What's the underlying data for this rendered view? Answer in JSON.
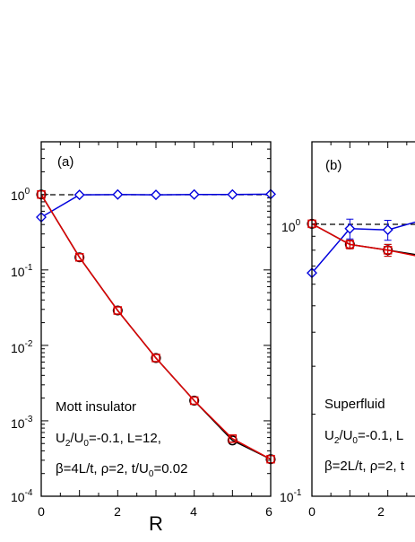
{
  "chart_data": [
    {
      "type": "line",
      "panel_label": "(a)",
      "xlabel": "R",
      "ylabel": "",
      "yscale": "log",
      "xlim": [
        0,
        6
      ],
      "ylim": [
        0.0001,
        5
      ],
      "x_ticks": [
        "0",
        "2",
        "4",
        "6"
      ],
      "y_ticks": [
        {
          "base": "10",
          "exp": "0"
        },
        {
          "base": "10",
          "exp": "-1"
        },
        {
          "base": "10",
          "exp": "-2"
        },
        {
          "base": "10",
          "exp": "-3"
        },
        {
          "base": "10",
          "exp": "-4"
        }
      ],
      "annotation": {
        "phase": "Mott insulator",
        "line2": {
          "a": "U",
          "a_sub": "2",
          "b": "/U",
          "b_sub": "0",
          "c": "=-0.1, L=12,"
        },
        "line3": {
          "a": "β=4L/t, ρ=2, t/U",
          "a_sub": "0",
          "b": "=0.02"
        }
      },
      "reference_line": 1,
      "series": [
        {
          "color": "#0000dd",
          "marker": "diamond",
          "x": [
            0,
            1,
            2,
            3,
            4,
            5,
            6
          ],
          "y": [
            0.5,
            0.99,
            1.0,
            0.99,
            1.0,
            1.0,
            1.01
          ]
        },
        {
          "color": "#000000",
          "marker": "circle",
          "x": [
            0,
            1,
            2,
            3,
            4,
            5,
            6
          ],
          "y": [
            1.0,
            0.147,
            0.029,
            0.0068,
            0.00185,
            0.00055,
            0.00031
          ]
        },
        {
          "color": "#dd0000",
          "marker": "square",
          "x": [
            0,
            1,
            2,
            3,
            4,
            5,
            6
          ],
          "y": [
            1.0,
            0.147,
            0.029,
            0.0068,
            0.00185,
            0.00058,
            0.00031
          ]
        }
      ]
    },
    {
      "type": "line",
      "panel_label": "(b)",
      "xlabel": "R",
      "ylabel": "",
      "yscale": "log",
      "xlim": [
        0,
        6
      ],
      "ylim": [
        0.1,
        2
      ],
      "x_ticks": [
        "0",
        "2"
      ],
      "y_ticks": [
        {
          "base": "10",
          "exp": "0"
        },
        {
          "base": "10",
          "exp": "-1"
        }
      ],
      "annotation": {
        "phase": "Superfluid",
        "line2": {
          "a": "U",
          "a_sub": "2",
          "b": "/U",
          "b_sub": "0",
          "c": "=-0.1, L"
        },
        "line3": {
          "a": "β=2L/t, ρ=2, t",
          "a_sub": "",
          "b": ""
        }
      },
      "reference_line": 1,
      "series": [
        {
          "color": "#0000dd",
          "marker": "diamond",
          "x": [
            0,
            1,
            2,
            3
          ],
          "y": [
            0.66,
            0.96,
            0.95,
            1.04
          ],
          "err": [
            0,
            0.08,
            0.08,
            0.09
          ]
        },
        {
          "color": "#000000",
          "marker": "circle",
          "x": [
            0,
            1,
            2,
            3
          ],
          "y": [
            1.0,
            0.84,
            0.8,
            0.76
          ],
          "err": [
            0,
            0.03,
            0.04,
            0.04
          ]
        },
        {
          "color": "#dd0000",
          "marker": "square",
          "x": [
            0,
            1,
            2,
            3
          ],
          "y": [
            1.0,
            0.84,
            0.8,
            0.75
          ],
          "err": [
            0,
            0.03,
            0.04,
            0.04
          ]
        }
      ]
    }
  ]
}
